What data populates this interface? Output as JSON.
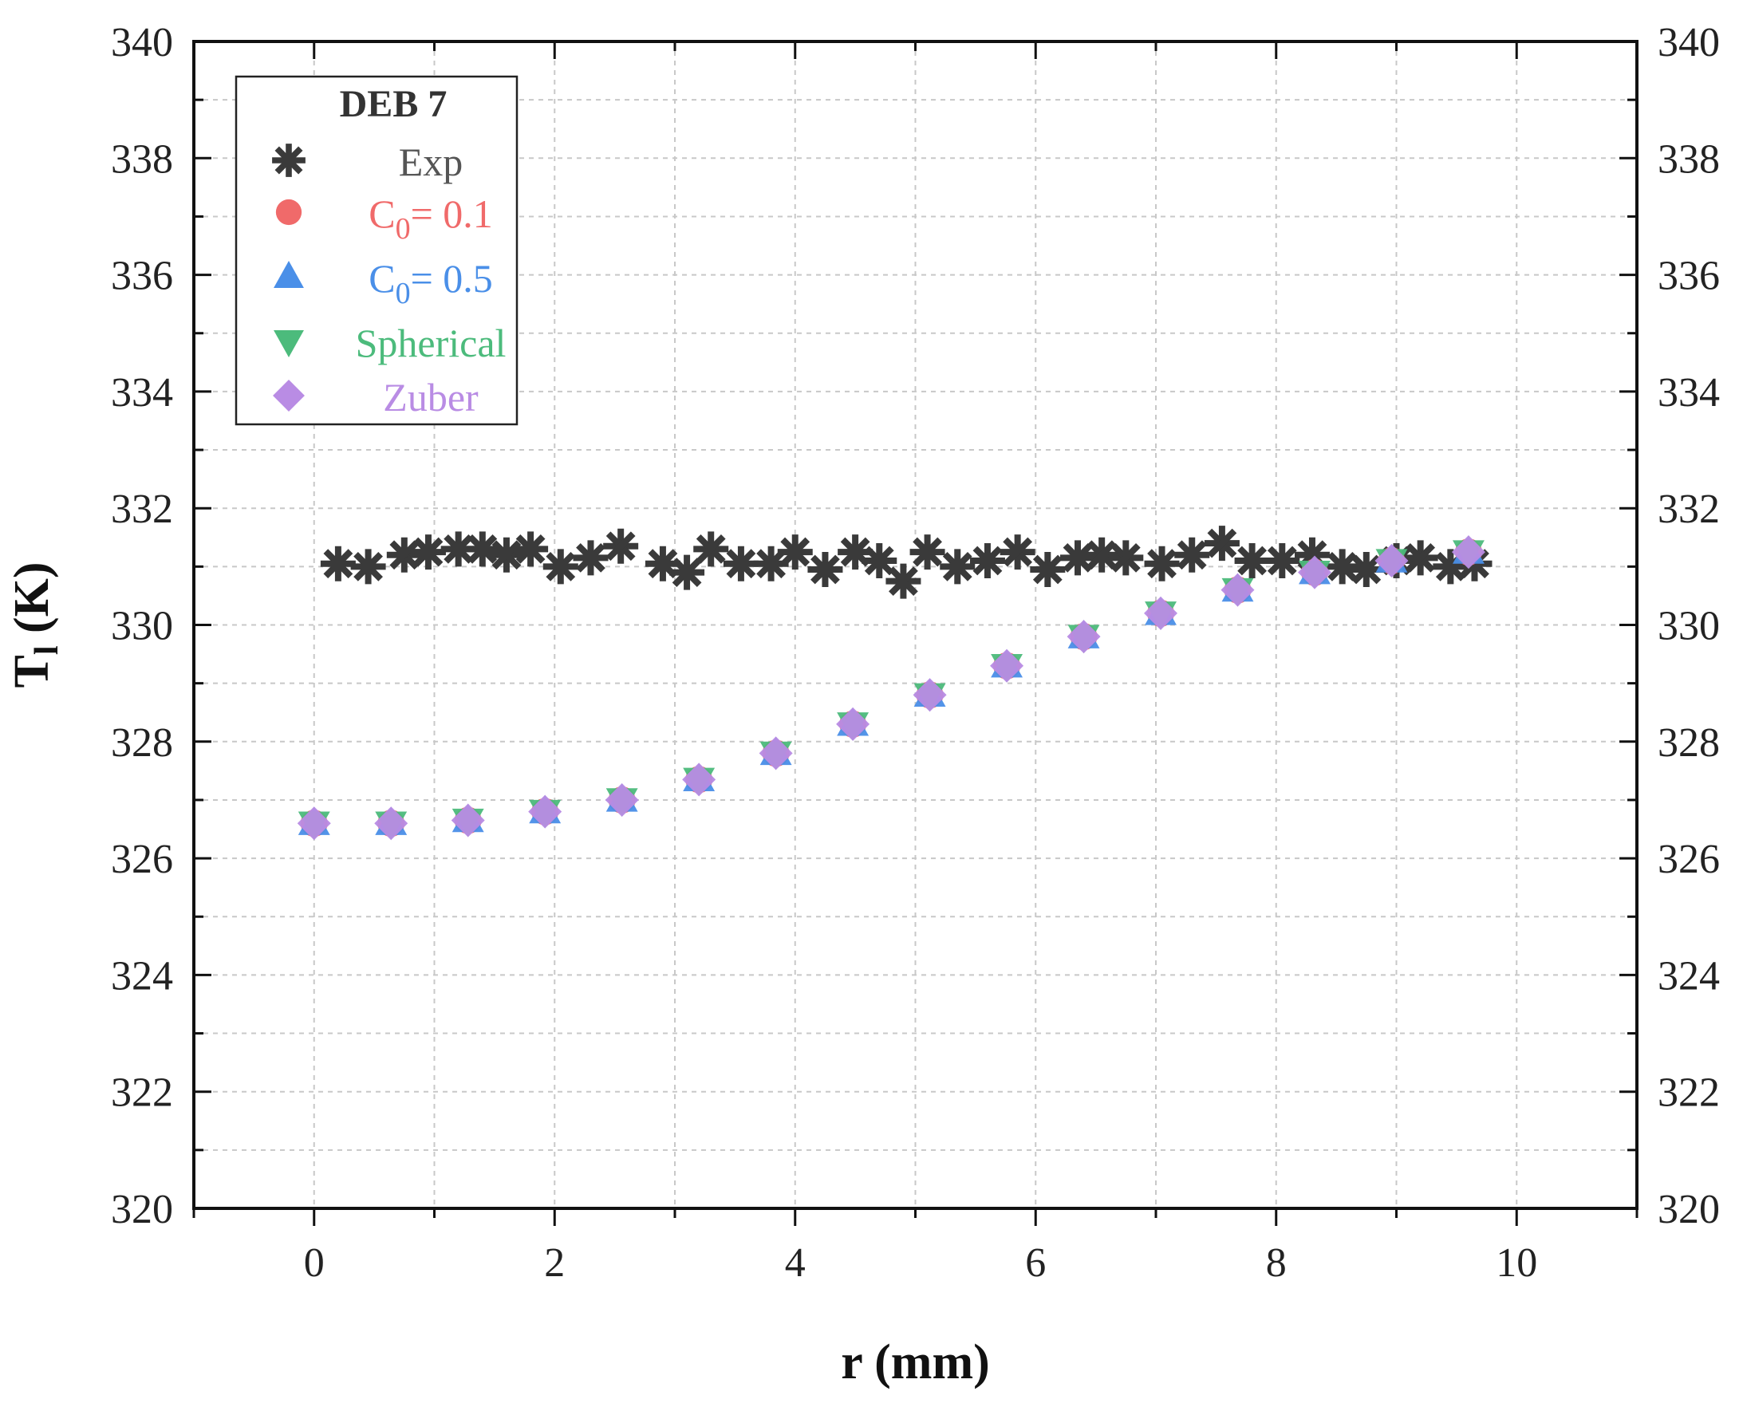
{
  "chart_data": {
    "type": "scatter",
    "title": "",
    "xlabel": "r (mm)",
    "ylabel_main": "T",
    "ylabel_sub": "l",
    "ylabel_unit": " (K)",
    "xlim": [
      -1,
      11
    ],
    "ylim": [
      320,
      340
    ],
    "x_ticks": [
      0,
      2,
      4,
      6,
      8,
      10
    ],
    "y_ticks": [
      320,
      322,
      324,
      326,
      328,
      330,
      332,
      334,
      336,
      338,
      340
    ],
    "grid": true,
    "legend": {
      "title": "DEB 7",
      "position": "top-left",
      "entries": [
        {
          "label": "Exp",
          "main": "Exp",
          "sub": "",
          "rest": "",
          "color": "#3a3a3a",
          "marker": "asterisk"
        },
        {
          "label": "C0= 0.1",
          "main": "C",
          "sub": "0",
          "rest": "= 0.1",
          "color": "#f06a6a",
          "marker": "circle"
        },
        {
          "label": "C0= 0.5",
          "main": "C",
          "sub": "0",
          "rest": "= 0.5",
          "color": "#4a8fe8",
          "marker": "triangle-up"
        },
        {
          "label": "Spherical",
          "main": "Spherical",
          "sub": "",
          "rest": "",
          "color": "#4cbb7c",
          "marker": "triangle-down"
        },
        {
          "label": "Zuber",
          "main": "Zuber",
          "sub": "",
          "rest": "",
          "color": "#b98ce4",
          "marker": "diamond"
        }
      ]
    },
    "series": [
      {
        "name": "Exp",
        "x": [
          0.2,
          0.45,
          0.75,
          0.95,
          1.2,
          1.4,
          1.6,
          1.8,
          2.05,
          2.3,
          2.55,
          2.9,
          3.1,
          3.3,
          3.55,
          3.8,
          4.0,
          4.25,
          4.5,
          4.7,
          4.9,
          5.1,
          5.35,
          5.6,
          5.85,
          6.1,
          6.35,
          6.55,
          6.75,
          7.05,
          7.3,
          7.55,
          7.8,
          8.05,
          8.3,
          8.55,
          8.75,
          9.0,
          9.2,
          9.45,
          9.65
        ],
        "y": [
          331.05,
          331.0,
          331.2,
          331.25,
          331.3,
          331.3,
          331.2,
          331.3,
          331.0,
          331.15,
          331.35,
          331.05,
          330.9,
          331.3,
          331.05,
          331.05,
          331.25,
          330.95,
          331.25,
          331.1,
          330.75,
          331.25,
          331.0,
          331.1,
          331.25,
          330.95,
          331.15,
          331.2,
          331.15,
          331.05,
          331.2,
          331.4,
          331.1,
          331.1,
          331.2,
          331.0,
          330.95,
          331.1,
          331.15,
          331.0,
          331.05
        ]
      },
      {
        "name": "C0= 0.1",
        "x": [
          0,
          0.64,
          1.28,
          1.92,
          2.56,
          3.2,
          3.84,
          4.48,
          5.12,
          5.76,
          6.4,
          7.04,
          7.68,
          8.32,
          8.96,
          9.6
        ],
        "y": [
          326.6,
          326.6,
          326.65,
          326.8,
          327.0,
          327.35,
          327.8,
          328.3,
          328.8,
          329.3,
          329.8,
          330.2,
          330.6,
          330.9,
          331.1,
          331.25
        ]
      },
      {
        "name": "C0= 0.5",
        "x": [
          0,
          0.64,
          1.28,
          1.92,
          2.56,
          3.2,
          3.84,
          4.48,
          5.12,
          5.76,
          6.4,
          7.04,
          7.68,
          8.32,
          8.96,
          9.6
        ],
        "y": [
          326.6,
          326.6,
          326.65,
          326.8,
          327.0,
          327.35,
          327.8,
          328.3,
          328.8,
          329.3,
          329.8,
          330.2,
          330.6,
          330.9,
          331.1,
          331.25
        ]
      },
      {
        "name": "Spherical",
        "x": [
          0,
          0.64,
          1.28,
          1.92,
          2.56,
          3.2,
          3.84,
          4.48,
          5.12,
          5.76,
          6.4,
          7.04,
          7.68,
          8.32,
          8.96,
          9.6
        ],
        "y": [
          326.6,
          326.6,
          326.65,
          326.8,
          327.0,
          327.35,
          327.8,
          328.3,
          328.8,
          329.3,
          329.8,
          330.2,
          330.6,
          330.9,
          331.1,
          331.25
        ]
      },
      {
        "name": "Zuber",
        "x": [
          0,
          0.64,
          1.28,
          1.92,
          2.56,
          3.2,
          3.84,
          4.48,
          5.12,
          5.76,
          6.4,
          7.04,
          7.68,
          8.32,
          8.96,
          9.6
        ],
        "y": [
          326.6,
          326.6,
          326.65,
          326.8,
          327.0,
          327.35,
          327.8,
          328.3,
          328.8,
          329.3,
          329.8,
          330.2,
          330.6,
          330.9,
          331.1,
          331.25
        ]
      }
    ]
  }
}
